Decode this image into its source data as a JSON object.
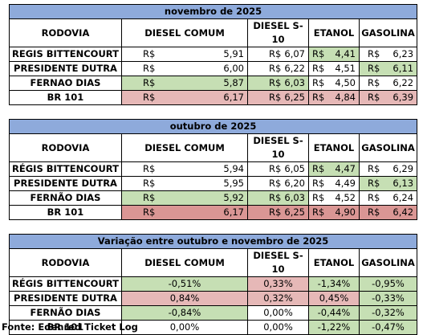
{
  "headers": {
    "rodovia": "RODOVIA",
    "diesel": "DIESEL COMUM",
    "dieselS10": "DIESEL S-10",
    "etanol": "ETANOL",
    "gasolina": "GASOLINA"
  },
  "currency": "R$",
  "tables": [
    {
      "title": "novembro de 2025",
      "rows": [
        {
          "road": "REGIS BITTENCOURT",
          "diesel": "5,91",
          "s10": "6,07",
          "etanol": "4,41",
          "gasolina": "6,23"
        },
        {
          "road": "PRESIDENTE DUTRA",
          "diesel": "6,00",
          "s10": "6,22",
          "etanol": "4,51",
          "gasolina": "6,11"
        },
        {
          "road": "FERNAO DIAS",
          "diesel": "5,87",
          "s10": "6,03",
          "etanol": "4,50",
          "gasolina": "6,22"
        },
        {
          "road": "BR 101",
          "diesel": "6,17",
          "s10": "6,25",
          "etanol": "4,84",
          "gasolina": "6,39"
        }
      ]
    },
    {
      "title": "outubro de 2025",
      "rows": [
        {
          "road": "RÉGIS BITTENCOURT",
          "diesel": "5,94",
          "s10": "6,05",
          "etanol": "4,47",
          "gasolina": "6,29"
        },
        {
          "road": "PRESIDENTE DUTRA",
          "diesel": "5,95",
          "s10": "6,20",
          "etanol": "4,49",
          "gasolina": "6,13"
        },
        {
          "road": "FERNÃO DIAS",
          "diesel": "5,92",
          "s10": "6,03",
          "etanol": "4,52",
          "gasolina": "6,24"
        },
        {
          "road": "BR 101",
          "diesel": "6,17",
          "s10": "6,25",
          "etanol": "4,90",
          "gasolina": "6,42"
        }
      ]
    },
    {
      "title": "Variação entre outubro e novembro de 2025",
      "rows": [
        {
          "road": "RÉGIS BITTENCOURT",
          "diesel": "-0,51%",
          "s10": "0,33%",
          "etanol": "-1,34%",
          "gasolina": "-0,95%"
        },
        {
          "road": "PRESIDENTE DUTRA",
          "diesel": "0,84%",
          "s10": "0,32%",
          "etanol": "0,45%",
          "gasolina": "-0,33%"
        },
        {
          "road": "FERNÃO DIAS",
          "diesel": "-0,84%",
          "s10": "0,00%",
          "etanol": "-0,44%",
          "gasolina": "-0,32%"
        },
        {
          "road": "BR 101",
          "diesel": "0,00%",
          "s10": "0,00%",
          "etanol": "-1,22%",
          "gasolina": "-0,47%"
        }
      ]
    }
  ],
  "highlight_colors": {
    "green": "#c6dfb4",
    "pink": "#e6b8b7",
    "title_blue": "#8eaadb"
  },
  "source": "Fonte: Edenred Ticket Log"
}
